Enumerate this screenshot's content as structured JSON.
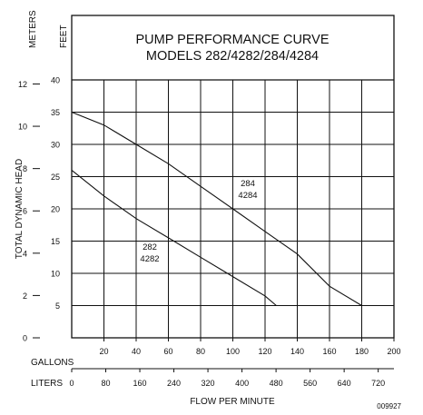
{
  "chart_data": {
    "type": "line",
    "title": "PUMP PERFORMANCE CURVE",
    "subtitle": "MODELS 282/4282/284/4284",
    "ylabel": "TOTAL DYNAMIC HEAD",
    "xlabel": "FLOW PER MINUTE",
    "y_unit_meters": "METERS",
    "y_unit_feet": "FEET",
    "x_unit_gallons": "GALLONS",
    "x_unit_liters": "LITERS",
    "figure_id": "009927",
    "grid": true,
    "xlim_gallons": [
      0,
      200
    ],
    "ylim_feet": [
      0,
      40
    ],
    "x_ticks_gallons": [
      "20",
      "40",
      "60",
      "80",
      "100",
      "120",
      "140",
      "160",
      "180",
      "200"
    ],
    "x_ticks_liters": [
      "0",
      "80",
      "160",
      "240",
      "320",
      "400",
      "480",
      "560",
      "640",
      "720"
    ],
    "y_ticks_feet": [
      "5",
      "10",
      "15",
      "20",
      "25",
      "30",
      "35",
      "40"
    ],
    "y_ticks_meters": [
      "0",
      "2",
      "4",
      "6",
      "8",
      "10",
      "12"
    ],
    "series": [
      {
        "label_lines": [
          "284",
          "4284"
        ],
        "x": [
          0,
          20,
          40,
          60,
          80,
          100,
          120,
          140,
          160,
          180
        ],
        "y": [
          35,
          33,
          30,
          27,
          23.5,
          20,
          16.5,
          13,
          8,
          5
        ]
      },
      {
        "label_lines": [
          "282",
          "4282"
        ],
        "x": [
          0,
          20,
          40,
          60,
          80,
          100,
          120,
          127
        ],
        "y": [
          26,
          22,
          18.5,
          15.5,
          12.5,
          9.5,
          6.5,
          5
        ]
      }
    ]
  }
}
